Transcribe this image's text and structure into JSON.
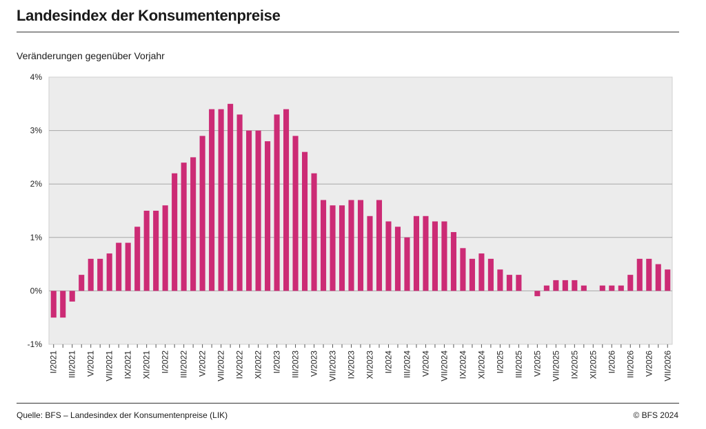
{
  "header": {
    "title": "Landesindex der Konsumentenpreise",
    "subtitle": "Veränderungen gegenüber Vorjahr"
  },
  "footer": {
    "source": "Quelle: BFS – Landesindex der Konsumentenpreise (LIK)",
    "copyright": "© BFS 2024"
  },
  "colors": {
    "bar": "#cc2b75",
    "plot_background": "#ececec",
    "gridline": "#a8a8a8",
    "axis": "#555555"
  },
  "chart_data": {
    "type": "bar",
    "title": "Landesindex der Konsumentenpreise",
    "subtitle": "Veränderungen gegenüber Vorjahr",
    "ylim": [
      -1,
      4
    ],
    "yticks": [
      -1,
      0,
      1,
      2,
      3,
      4
    ],
    "ytick_labels": [
      "-1%",
      "0%",
      "1%",
      "2%",
      "3%",
      "4%"
    ],
    "grid": true,
    "x_tick_labels": [
      "I/2021",
      "III/2021",
      "V/2021",
      "VII/2021",
      "IX/2021",
      "XI/2021",
      "I/2022",
      "III/2022",
      "V/2022",
      "VII/2022",
      "IX/2022",
      "XI/2022",
      "I/2023",
      "III/2023",
      "V/2023",
      "VII/2023",
      "IX/2023",
      "XI/2023",
      "I/2024",
      "III/2024",
      "V/2024",
      "VII/2024",
      "IX/2024",
      "XI/2024",
      "I/2025",
      "III/2025",
      "V/2025",
      "VII/2025",
      "IX/2025",
      "XI/2025",
      "I/2026",
      "III/2026",
      "V/2026",
      "VII/2026"
    ],
    "values": [
      -0.5,
      -0.5,
      -0.2,
      0.3,
      0.6,
      0.6,
      0.7,
      0.9,
      0.9,
      1.2,
      1.5,
      1.5,
      1.6,
      2.2,
      2.4,
      2.5,
      2.9,
      3.4,
      3.4,
      3.5,
      3.3,
      3.0,
      3.0,
      2.8,
      3.3,
      3.4,
      2.9,
      2.6,
      2.2,
      1.7,
      1.6,
      1.6,
      1.7,
      1.7,
      1.4,
      1.7,
      1.3,
      1.2,
      1.0,
      1.4,
      1.4,
      1.3,
      1.3,
      1.1,
      0.8,
      0.6,
      0.7,
      0.6,
      0.4,
      0.3,
      0.3,
      0.0,
      -0.1,
      0.1,
      0.2,
      0.2,
      0.2,
      0.1,
      0.0,
      0.1,
      0.1,
      0.1,
      0.3,
      0.6,
      0.6,
      0.5,
      0.4
    ]
  }
}
